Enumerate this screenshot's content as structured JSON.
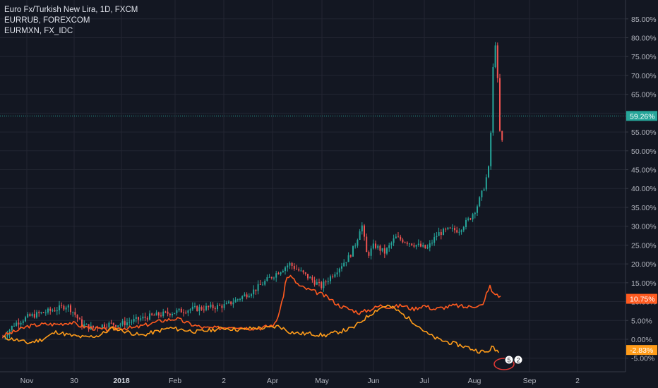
{
  "legend": {
    "main": "Euro Fx/Turkish New Lira, 1D, FXCM",
    "compare1": "EURRUB, FOREXCOM",
    "compare2": "EURMXN, FX_IDC"
  },
  "colors": {
    "background": "#131722",
    "grid": "#232632",
    "axis_text": "#b2b5be",
    "up_candle": "#26a69a",
    "down_candle": "#ef5350",
    "eurrub": "#ff5a1f",
    "eurmxn": "#ff9c1a",
    "last_price_line": "#26a69a",
    "event_badge": "#e53935"
  },
  "chart_data": {
    "type": "line",
    "mode": "percent-comparison",
    "y_axis_position": "right",
    "ylim": [
      -8,
      88
    ],
    "y_ticks": [
      "85.00%",
      "80.00%",
      "75.00%",
      "70.00%",
      "65.00%",
      "60.00%",
      "55.00%",
      "50.00%",
      "45.00%",
      "40.00%",
      "35.00%",
      "30.00%",
      "25.00%",
      "20.00%",
      "15.00%",
      "10.00%",
      "5.00%",
      "0.00%",
      "-5.00%"
    ],
    "y_tick_values": [
      85,
      80,
      75,
      70,
      65,
      60,
      55,
      50,
      45,
      40,
      35,
      30,
      25,
      20,
      15,
      10,
      5,
      0,
      -5
    ],
    "x_ticks": [
      {
        "label": "Nov",
        "bold": false,
        "x": 38
      },
      {
        "label": "30",
        "bold": false,
        "x": 105
      },
      {
        "label": "2018",
        "bold": true,
        "x": 172
      },
      {
        "label": "Feb",
        "bold": false,
        "x": 248
      },
      {
        "label": "2",
        "bold": false,
        "x": 317
      },
      {
        "label": "Apr",
        "bold": false,
        "x": 386
      },
      {
        "label": "May",
        "bold": false,
        "x": 456
      },
      {
        "label": "Jun",
        "bold": false,
        "x": 529
      },
      {
        "label": "Jul",
        "bold": false,
        "x": 601
      },
      {
        "label": "Aug",
        "bold": false,
        "x": 672
      },
      {
        "label": "Sep",
        "bold": false,
        "x": 750
      },
      {
        "label": "2",
        "bold": false,
        "x": 818
      }
    ],
    "series": [
      {
        "name": "Euro Fx/Turkish New Lira, 1D, FXCM",
        "type": "candlestick",
        "points": [
          [
            4,
            0.5
          ],
          [
            20,
            4
          ],
          [
            40,
            6
          ],
          [
            60,
            7
          ],
          [
            80,
            8
          ],
          [
            95,
            9
          ],
          [
            105,
            7
          ],
          [
            115,
            4
          ],
          [
            130,
            3
          ],
          [
            150,
            4
          ],
          [
            170,
            4
          ],
          [
            190,
            5
          ],
          [
            210,
            6
          ],
          [
            240,
            7
          ],
          [
            270,
            8
          ],
          [
            300,
            8.5
          ],
          [
            320,
            9
          ],
          [
            340,
            11
          ],
          [
            360,
            13
          ],
          [
            380,
            16
          ],
          [
            395,
            18
          ],
          [
            410,
            20
          ],
          [
            425,
            18
          ],
          [
            440,
            16
          ],
          [
            455,
            14
          ],
          [
            465,
            16
          ],
          [
            480,
            19
          ],
          [
            495,
            22
          ],
          [
            505,
            26
          ],
          [
            512,
            31
          ],
          [
            520,
            22
          ],
          [
            530,
            25
          ],
          [
            545,
            23
          ],
          [
            560,
            27
          ],
          [
            575,
            26
          ],
          [
            590,
            25
          ],
          [
            605,
            24
          ],
          [
            620,
            28
          ],
          [
            635,
            29
          ],
          [
            650,
            29
          ],
          [
            665,
            32
          ],
          [
            675,
            35
          ],
          [
            685,
            40
          ],
          [
            693,
            46
          ],
          [
            697,
            62
          ],
          [
            700,
            83
          ],
          [
            704,
            72
          ],
          [
            708,
            55
          ],
          [
            711,
            52
          ],
          [
            714,
            58
          ]
        ],
        "last_label": "59.26%",
        "last_value": 59.26
      },
      {
        "name": "EURRUB, FOREXCOM",
        "type": "line",
        "points": [
          [
            4,
            1
          ],
          [
            20,
            2
          ],
          [
            40,
            3.5
          ],
          [
            60,
            4
          ],
          [
            80,
            4
          ],
          [
            100,
            4.5
          ],
          [
            115,
            3.5
          ],
          [
            130,
            3
          ],
          [
            150,
            2.5
          ],
          [
            170,
            3
          ],
          [
            190,
            3
          ],
          [
            210,
            4
          ],
          [
            230,
            5
          ],
          [
            250,
            5.5
          ],
          [
            270,
            4
          ],
          [
            290,
            3
          ],
          [
            310,
            3
          ],
          [
            330,
            3.5
          ],
          [
            350,
            3
          ],
          [
            370,
            3
          ],
          [
            390,
            4
          ],
          [
            400,
            10
          ],
          [
            405,
            16
          ],
          [
            410,
            17
          ],
          [
            425,
            14
          ],
          [
            440,
            13
          ],
          [
            455,
            12
          ],
          [
            465,
            11
          ],
          [
            480,
            9
          ],
          [
            495,
            8
          ],
          [
            510,
            7
          ],
          [
            525,
            8
          ],
          [
            540,
            9
          ],
          [
            555,
            8.5
          ],
          [
            570,
            9
          ],
          [
            585,
            8
          ],
          [
            600,
            9
          ],
          [
            615,
            8
          ],
          [
            630,
            8.5
          ],
          [
            645,
            9
          ],
          [
            660,
            8.5
          ],
          [
            675,
            9
          ],
          [
            685,
            9
          ],
          [
            690,
            13
          ],
          [
            694,
            14
          ],
          [
            698,
            12
          ],
          [
            704,
            12
          ],
          [
            710,
            11
          ]
        ],
        "last_label": "10.75%",
        "last_value": 10.75
      },
      {
        "name": "EURMXN, FX_IDC",
        "type": "line",
        "points": [
          [
            4,
            0.5
          ],
          [
            20,
            0
          ],
          [
            40,
            -1
          ],
          [
            60,
            0
          ],
          [
            80,
            2
          ],
          [
            100,
            1
          ],
          [
            120,
            0.5
          ],
          [
            140,
            1
          ],
          [
            160,
            3
          ],
          [
            180,
            2
          ],
          [
            200,
            1
          ],
          [
            220,
            2
          ],
          [
            240,
            3
          ],
          [
            260,
            2.5
          ],
          [
            280,
            2
          ],
          [
            300,
            2.5
          ],
          [
            320,
            3
          ],
          [
            340,
            2.5
          ],
          [
            360,
            3
          ],
          [
            380,
            3
          ],
          [
            395,
            3.5
          ],
          [
            410,
            2
          ],
          [
            425,
            1.5
          ],
          [
            440,
            1.5
          ],
          [
            460,
            1
          ],
          [
            480,
            2
          ],
          [
            500,
            3
          ],
          [
            520,
            6
          ],
          [
            535,
            8
          ],
          [
            548,
            9
          ],
          [
            560,
            8
          ],
          [
            575,
            6
          ],
          [
            590,
            4
          ],
          [
            605,
            1.5
          ],
          [
            620,
            0
          ],
          [
            640,
            -1
          ],
          [
            660,
            -2
          ],
          [
            675,
            -3
          ],
          [
            690,
            -3.5
          ],
          [
            697,
            -2
          ],
          [
            702,
            -3
          ],
          [
            708,
            -3
          ]
        ],
        "last_label": "-2.83%",
        "last_value": -2.83
      }
    ],
    "event_badges": [
      "5",
      "2"
    ]
  }
}
